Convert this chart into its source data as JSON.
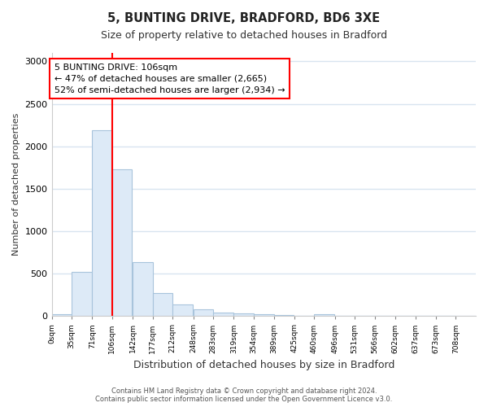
{
  "title1": "5, BUNTING DRIVE, BRADFORD, BD6 3XE",
  "title2": "Size of property relative to detached houses in Bradford",
  "xlabel": "Distribution of detached houses by size in Bradford",
  "ylabel": "Number of detached properties",
  "bar_color": "#ddeaf7",
  "bar_edge_color": "#a8c4dc",
  "red_line_x": 106,
  "bin_edges": [
    0,
    35,
    71,
    106,
    142,
    177,
    212,
    248,
    283,
    319,
    354,
    389,
    425,
    460,
    496,
    531,
    566,
    602,
    637,
    673,
    708
  ],
  "bar_heights": [
    20,
    520,
    2190,
    1730,
    635,
    270,
    140,
    80,
    45,
    35,
    20,
    10,
    5,
    25,
    5,
    2,
    1,
    1,
    0,
    0
  ],
  "ylim": [
    0,
    3100
  ],
  "yticks": [
    0,
    500,
    1000,
    1500,
    2000,
    2500,
    3000
  ],
  "annotation_text": "5 BUNTING DRIVE: 106sqm\n← 47% of detached houses are smaller (2,665)\n52% of semi-detached houses are larger (2,934) →",
  "annotation_box_color": "white",
  "annotation_box_edge_color": "red",
  "footer_text": "Contains HM Land Registry data © Crown copyright and database right 2024.\nContains public sector information licensed under the Open Government Licence v3.0.",
  "background_color": "#ffffff",
  "grid_color": "#d8e4f0"
}
